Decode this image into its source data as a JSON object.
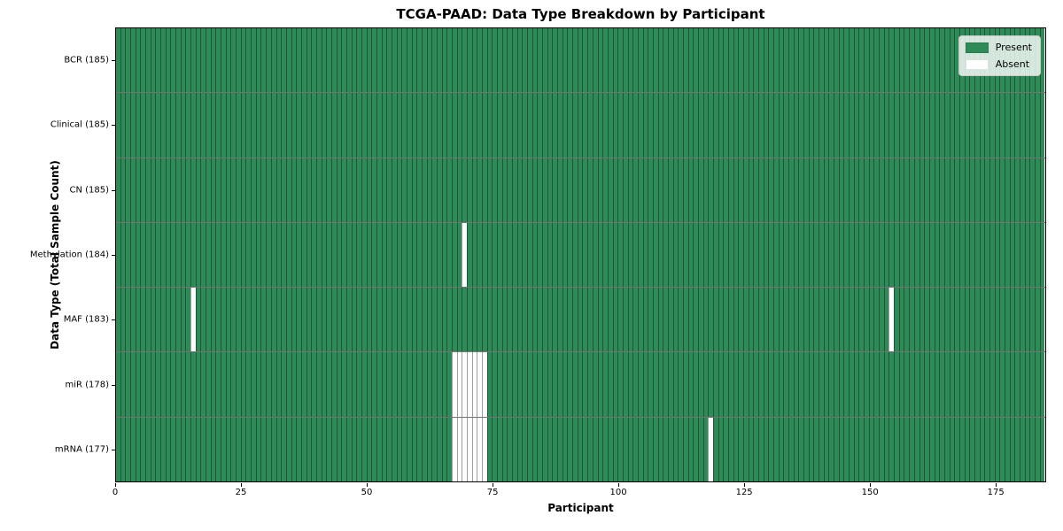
{
  "chart_data": {
    "type": "heatmap",
    "title": "TCGA-PAAD: Data Type Breakdown by Participant",
    "xlabel": "Participant",
    "ylabel": "Data Type (Total Sample Count)",
    "xlim": [
      0,
      185
    ],
    "x_ticks": [
      0,
      25,
      50,
      75,
      100,
      125,
      150,
      175
    ],
    "n_participants": 185,
    "grid": "cell-edges-visible",
    "legend_position": "upper-right",
    "rows": [
      {
        "label": "BCR (185)",
        "data_type": "BCR",
        "present_count": 185,
        "absent_participants": []
      },
      {
        "label": "Clinical (185)",
        "data_type": "Clinical",
        "present_count": 185,
        "absent_participants": []
      },
      {
        "label": "CN (185)",
        "data_type": "CN",
        "present_count": 185,
        "absent_participants": []
      },
      {
        "label": "Methylation (184)",
        "data_type": "Methylation",
        "present_count": 184,
        "absent_participants": [
          69
        ]
      },
      {
        "label": "MAF (183)",
        "data_type": "MAF",
        "present_count": 183,
        "absent_participants": [
          15,
          154
        ]
      },
      {
        "label": "miR (178)",
        "data_type": "miR",
        "present_count": 178,
        "absent_participants": [
          67,
          68,
          69,
          70,
          71,
          72,
          73
        ]
      },
      {
        "label": "mRNA (177)",
        "data_type": "mRNA",
        "present_count": 177,
        "absent_participants": [
          67,
          68,
          69,
          70,
          71,
          72,
          73,
          118
        ]
      }
    ],
    "legend": {
      "entries": [
        {
          "label": "Present",
          "color": "#2e8b57"
        },
        {
          "label": "Absent",
          "color": "#ffffff"
        }
      ]
    },
    "colors": {
      "present": "#2e8b57",
      "absent": "#ffffff",
      "spine": "#000000"
    }
  }
}
